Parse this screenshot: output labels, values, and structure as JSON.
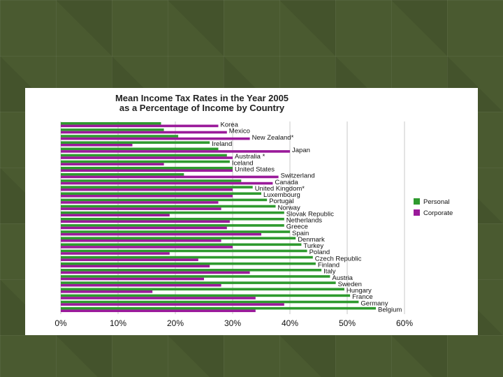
{
  "chart_data": {
    "type": "bar",
    "orientation": "horizontal",
    "title": "Mean Income Tax Rates in the Year 2005",
    "subtitle": "as a Percentage of Income by Country",
    "xlabel": "",
    "ylabel": "",
    "xlim": [
      0,
      60
    ],
    "ticks": [
      {
        "value": 0,
        "label": "0%"
      },
      {
        "value": 10,
        "label": "10%"
      },
      {
        "value": 20,
        "label": "20%"
      },
      {
        "value": 30,
        "label": "30%"
      },
      {
        "value": 40,
        "label": "40%"
      },
      {
        "value": 50,
        "label": "50%"
      },
      {
        "value": 60,
        "label": "60%"
      }
    ],
    "grid": true,
    "legend_position": "right",
    "categories": [
      "Korea",
      "Mexico",
      "New Zealand*",
      "Ireland",
      "Japan",
      "Australia *",
      "Iceland",
      "United States",
      "Switzerland",
      "Canada",
      "United Kingdom*",
      "Luxembourg",
      "Portugal",
      "Norway",
      "Slovak Republic",
      "Netherlands",
      "Greece",
      "Spain",
      "Denmark",
      "Turkey",
      "Poland",
      "Czech Republic",
      "Finland",
      "Italy",
      "Austria",
      "Sweden",
      "Hungary",
      "France",
      "Germany",
      "Belgium"
    ],
    "series": [
      {
        "name": "Personal",
        "color": "#2e9a2e",
        "values": [
          17.5,
          18,
          20.5,
          26,
          27.5,
          29,
          29.5,
          30,
          21.5,
          31.5,
          33.5,
          35,
          36,
          37.5,
          39,
          39,
          39,
          40,
          41,
          42,
          43,
          44,
          44.5,
          45.5,
          47,
          48,
          49.5,
          50.5,
          52,
          55
        ]
      },
      {
        "name": "Corporate",
        "color": "#9a1a9a",
        "values": [
          27.5,
          29,
          33,
          12.5,
          40,
          30,
          18,
          30,
          38,
          37,
          30,
          30,
          27.5,
          28,
          19,
          29.5,
          29,
          35,
          28,
          30,
          19,
          24,
          26,
          33,
          25,
          28,
          16,
          34,
          39,
          34
        ]
      }
    ]
  }
}
